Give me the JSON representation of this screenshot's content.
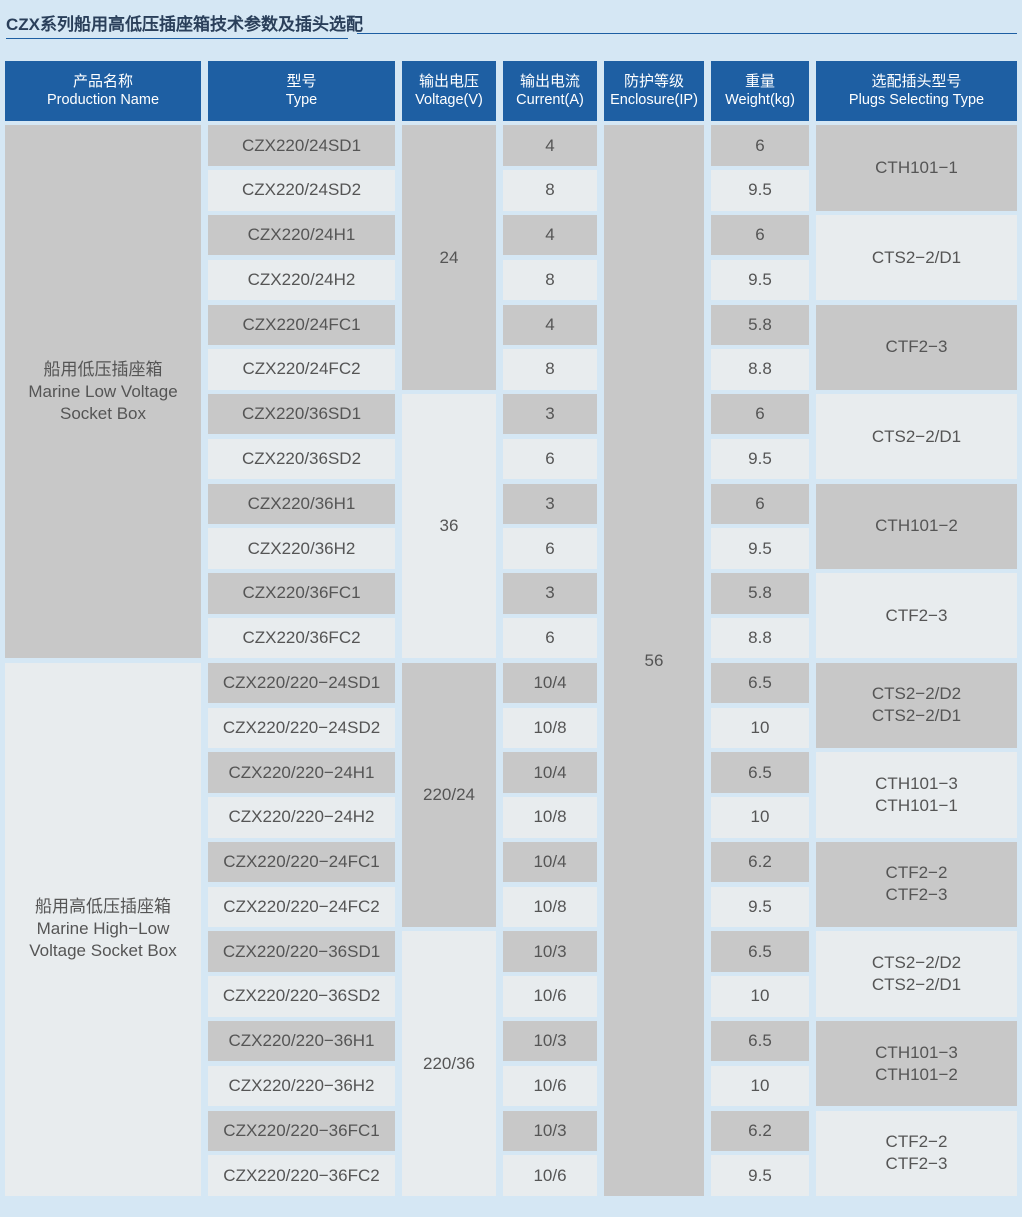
{
  "title": "CZX系列船用高低压插座箱技术参数及插头选配",
  "headers": [
    {
      "cn": "产品名称",
      "en": "Production Name"
    },
    {
      "cn": "型号",
      "en": "Type"
    },
    {
      "cn": "输出电压",
      "en": "Voltage(V)"
    },
    {
      "cn": "输出电流",
      "en": "Current(A)"
    },
    {
      "cn": "防护等级",
      "en": "Enclosure(IP)"
    },
    {
      "cn": "重量",
      "en": "Weight(kg)"
    },
    {
      "cn": "选配插头型号",
      "en": "Plugs Selecting Type"
    }
  ],
  "products": [
    {
      "cn": "船用低压插座箱",
      "en1": "Marine Low Voltage",
      "en2": "Socket Box"
    },
    {
      "cn": "船用高低压插座箱",
      "en1": "Marine High−Low",
      "en2": "Voltage Socket Box"
    }
  ],
  "voltages": [
    "24",
    "36",
    "220/24",
    "220/36"
  ],
  "enclosure": "56",
  "rows": [
    {
      "type": "CZX220/24SD1",
      "current": "4",
      "weight": "6"
    },
    {
      "type": "CZX220/24SD2",
      "current": "8",
      "weight": "9.5"
    },
    {
      "type": "CZX220/24H1",
      "current": "4",
      "weight": "6"
    },
    {
      "type": "CZX220/24H2",
      "current": "8",
      "weight": "9.5"
    },
    {
      "type": "CZX220/24FC1",
      "current": "4",
      "weight": "5.8"
    },
    {
      "type": "CZX220/24FC2",
      "current": "8",
      "weight": "8.8"
    },
    {
      "type": "CZX220/36SD1",
      "current": "3",
      "weight": "6"
    },
    {
      "type": "CZX220/36SD2",
      "current": "6",
      "weight": "9.5"
    },
    {
      "type": "CZX220/36H1",
      "current": "3",
      "weight": "6"
    },
    {
      "type": "CZX220/36H2",
      "current": "6",
      "weight": "9.5"
    },
    {
      "type": "CZX220/36FC1",
      "current": "3",
      "weight": "5.8"
    },
    {
      "type": "CZX220/36FC2",
      "current": "6",
      "weight": "8.8"
    },
    {
      "type": "CZX220/220−24SD1",
      "current": "10/4",
      "weight": "6.5"
    },
    {
      "type": "CZX220/220−24SD2",
      "current": "10/8",
      "weight": "10"
    },
    {
      "type": "CZX220/220−24H1",
      "current": "10/4",
      "weight": "6.5"
    },
    {
      "type": "CZX220/220−24H2",
      "current": "10/8",
      "weight": "10"
    },
    {
      "type": "CZX220/220−24FC1",
      "current": "10/4",
      "weight": "6.2"
    },
    {
      "type": "CZX220/220−24FC2",
      "current": "10/8",
      "weight": "9.5"
    },
    {
      "type": "CZX220/220−36SD1",
      "current": "10/3",
      "weight": "6.5"
    },
    {
      "type": "CZX220/220−36SD2",
      "current": "10/6",
      "weight": "10"
    },
    {
      "type": "CZX220/220−36H1",
      "current": "10/3",
      "weight": "6.5"
    },
    {
      "type": "CZX220/220−36H2",
      "current": "10/6",
      "weight": "10"
    },
    {
      "type": "CZX220/220−36FC1",
      "current": "10/3",
      "weight": "6.2"
    },
    {
      "type": "CZX220/220−36FC2",
      "current": "10/6",
      "weight": "9.5"
    }
  ],
  "plugs": [
    [
      "CTH101−1"
    ],
    [
      "CTS2−2/D1"
    ],
    [
      "CTF2−3"
    ],
    [
      "CTS2−2/D1"
    ],
    [
      "CTH101−2"
    ],
    [
      "CTF2−3"
    ],
    [
      "CTS2−2/D2",
      "CTS2−2/D1"
    ],
    [
      "CTH101−3",
      "CTH101−1"
    ],
    [
      "CTF2−2",
      "CTF2−3"
    ],
    [
      "CTS2−2/D2",
      "CTS2−2/D1"
    ],
    [
      "CTH101−3",
      "CTH101−2"
    ],
    [
      "CTF2−2",
      "CTF2−3"
    ]
  ],
  "colors": {
    "background": "#d5e7f4",
    "header": "#1e5fa3",
    "cell_dark": "#c8c8c8",
    "cell_light": "#e8ecee"
  }
}
